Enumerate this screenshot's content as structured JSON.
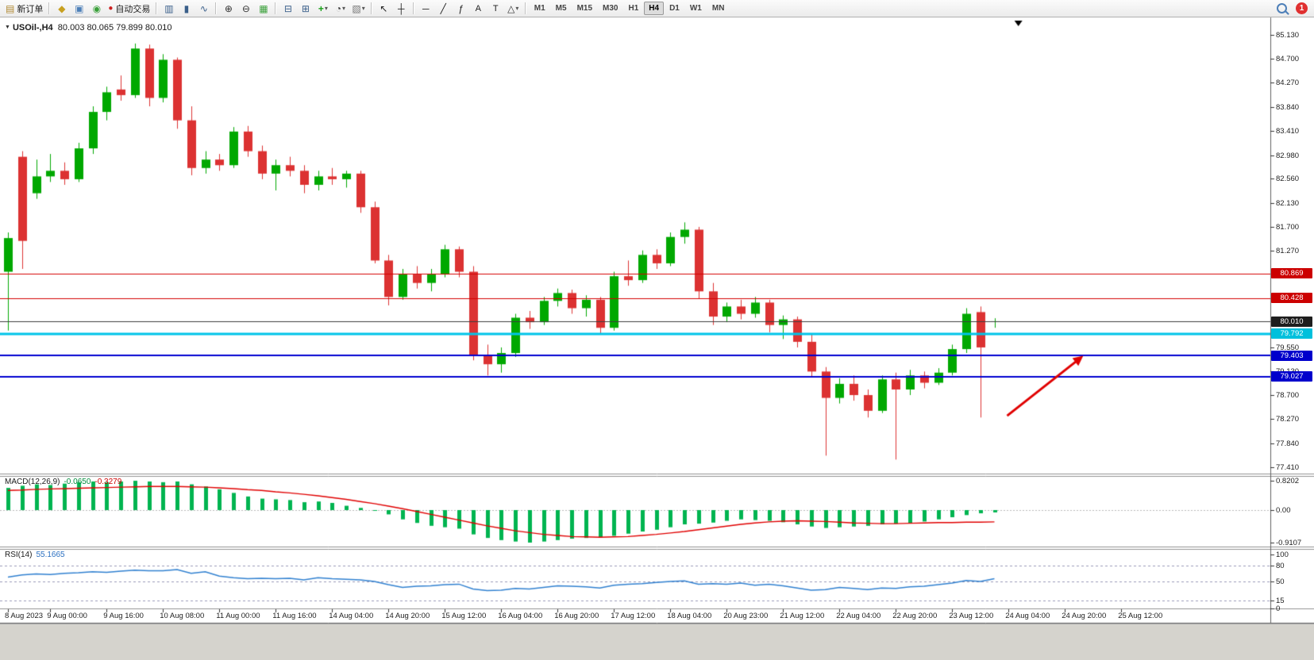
{
  "toolbar": {
    "new_order_label": "新订单",
    "autotrade_label": "自动交易",
    "timeframes": [
      "M1",
      "M5",
      "M15",
      "M30",
      "H1",
      "H4",
      "D1",
      "W1",
      "MN"
    ],
    "active_timeframe": "H4",
    "notification_count": "1",
    "icons": {
      "new_order": "▤",
      "mq": "◆",
      "profile": "▣",
      "community": "◉",
      "autotrade": "●",
      "bar_chart": "▥",
      "candle_chart": "▮",
      "line_chart": "∿",
      "zoom_in": "⊕",
      "zoom_out": "⊖",
      "tile_windows": "▦",
      "cascade": "⊟",
      "arrange": "⊞",
      "indicators": "+",
      "periods": "◔",
      "templates": "▧",
      "cursor": "↖",
      "crosshair": "┼",
      "hline": "─",
      "trendline": "╱",
      "fibonacci": "ƒ",
      "text": "A",
      "text_label": "T",
      "shapes": "△",
      "caret": "▾"
    }
  },
  "chart": {
    "expand_icon": "▼",
    "title": "USOil-,H4",
    "ohlc": "80.003 80.065 79.899 80.010"
  },
  "chart_data": {
    "type": "candlestick",
    "symbol": "USOil-",
    "timeframe": "H4",
    "current": {
      "open": "80.003",
      "high": "80.065",
      "low": "79.899",
      "close": "80.010"
    },
    "price_axis_ticks": [
      "85.130",
      "84.700",
      "84.270",
      "83.840",
      "83.410",
      "82.980",
      "82.560",
      "82.130",
      "81.700",
      "81.270",
      "79.550",
      "79.130",
      "78.700",
      "78.270",
      "77.840",
      "77.410"
    ],
    "price_lines": [
      {
        "text": "80.869",
        "price": 80.869,
        "bg": "#cc0000",
        "line": "#d40000",
        "width": 1
      },
      {
        "text": "80.428",
        "price": 80.428,
        "bg": "#cc0000",
        "line": "#d40000",
        "width": 1
      },
      {
        "text": "80.010",
        "price": 80.01,
        "bg": "#1e1e1e",
        "line": "#3c3c3c",
        "width": 1
      },
      {
        "text": "79.792",
        "price": 79.792,
        "bg": "#00c0dc",
        "line": "#00c4e8",
        "width": 3
      },
      {
        "text": "79.403",
        "price": 79.403,
        "bg": "#0000cc",
        "line": "#0000d0",
        "width": 2
      },
      {
        "text": "79.027",
        "price": 79.027,
        "bg": "#0000cc",
        "line": "#0000d0",
        "width": 2
      }
    ],
    "candles": [
      [
        80.9,
        81.6,
        79.85,
        81.5
      ],
      [
        82.95,
        83.05,
        80.95,
        81.45
      ],
      [
        82.3,
        82.9,
        82.2,
        82.6
      ],
      [
        82.6,
        83.0,
        82.5,
        82.7
      ],
      [
        82.7,
        82.85,
        82.45,
        82.55
      ],
      [
        82.55,
        83.2,
        82.5,
        83.1
      ],
      [
        83.1,
        83.85,
        83.0,
        83.75
      ],
      [
        83.75,
        84.2,
        83.6,
        84.1
      ],
      [
        84.15,
        84.4,
        83.95,
        84.05
      ],
      [
        84.05,
        84.97,
        84.0,
        84.88
      ],
      [
        84.88,
        84.95,
        83.85,
        84.0
      ],
      [
        84.0,
        84.78,
        83.92,
        84.68
      ],
      [
        84.68,
        84.72,
        83.45,
        83.6
      ],
      [
        83.6,
        83.85,
        82.62,
        82.75
      ],
      [
        82.75,
        83.05,
        82.65,
        82.9
      ],
      [
        82.9,
        83.0,
        82.7,
        82.8
      ],
      [
        82.8,
        83.48,
        82.75,
        83.4
      ],
      [
        83.4,
        83.5,
        82.95,
        83.05
      ],
      [
        83.05,
        83.15,
        82.55,
        82.65
      ],
      [
        82.65,
        82.9,
        82.35,
        82.8
      ],
      [
        82.8,
        82.95,
        82.6,
        82.7
      ],
      [
        82.7,
        82.8,
        82.3,
        82.45
      ],
      [
        82.45,
        82.7,
        82.35,
        82.6
      ],
      [
        82.6,
        82.75,
        82.45,
        82.55
      ],
      [
        82.55,
        82.7,
        82.4,
        82.65
      ],
      [
        82.65,
        82.7,
        81.95,
        82.05
      ],
      [
        82.05,
        82.15,
        81.05,
        81.1
      ],
      [
        81.1,
        81.2,
        80.3,
        80.45
      ],
      [
        80.45,
        80.95,
        80.4,
        80.85
      ],
      [
        80.85,
        81.0,
        80.6,
        80.7
      ],
      [
        80.7,
        80.95,
        80.55,
        80.85
      ],
      [
        80.85,
        81.38,
        80.8,
        81.3
      ],
      [
        81.3,
        81.35,
        80.8,
        80.9
      ],
      [
        80.9,
        81.0,
        79.32,
        79.4
      ],
      [
        79.4,
        79.6,
        79.05,
        79.25
      ],
      [
        79.25,
        79.55,
        79.1,
        79.45
      ],
      [
        79.45,
        80.15,
        79.38,
        80.08
      ],
      [
        80.08,
        80.2,
        79.88,
        80.0
      ],
      [
        80.0,
        80.45,
        79.95,
        80.38
      ],
      [
        80.38,
        80.6,
        80.28,
        80.52
      ],
      [
        80.52,
        80.58,
        80.15,
        80.25
      ],
      [
        80.25,
        80.48,
        80.1,
        80.4
      ],
      [
        80.4,
        80.45,
        79.78,
        79.9
      ],
      [
        79.9,
        80.9,
        79.85,
        80.82
      ],
      [
        80.82,
        81.1,
        80.65,
        80.75
      ],
      [
        80.75,
        81.28,
        80.7,
        81.2
      ],
      [
        81.2,
        81.3,
        80.95,
        81.05
      ],
      [
        81.05,
        81.6,
        81.0,
        81.52
      ],
      [
        81.52,
        81.78,
        81.4,
        81.65
      ],
      [
        81.65,
        81.7,
        80.42,
        80.55
      ],
      [
        80.55,
        80.7,
        79.95,
        80.1
      ],
      [
        80.1,
        80.35,
        80.0,
        80.28
      ],
      [
        80.28,
        80.4,
        80.05,
        80.15
      ],
      [
        80.15,
        80.45,
        80.08,
        80.35
      ],
      [
        80.35,
        80.4,
        79.82,
        79.95
      ],
      [
        79.95,
        80.12,
        79.7,
        80.05
      ],
      [
        80.05,
        80.1,
        79.55,
        79.65
      ],
      [
        79.65,
        79.8,
        79.02,
        79.12
      ],
      [
        79.12,
        79.2,
        77.62,
        78.65
      ],
      [
        78.65,
        79.0,
        78.55,
        78.9
      ],
      [
        78.9,
        79.05,
        78.6,
        78.7
      ],
      [
        78.7,
        78.8,
        78.3,
        78.42
      ],
      [
        78.42,
        79.05,
        78.38,
        78.98
      ],
      [
        78.98,
        79.1,
        77.55,
        78.8
      ],
      [
        78.8,
        79.15,
        78.7,
        79.05
      ],
      [
        79.05,
        79.12,
        78.82,
        78.92
      ],
      [
        78.92,
        79.18,
        78.88,
        79.1
      ],
      [
        79.1,
        79.6,
        79.05,
        79.52
      ],
      [
        79.52,
        80.25,
        79.45,
        80.15
      ],
      [
        80.18,
        80.28,
        78.3,
        79.55
      ],
      [
        80.0,
        80.07,
        79.9,
        80.01
      ]
    ],
    "time_labels": [
      {
        "idx": 0,
        "text": "8 Aug 2023"
      },
      {
        "idx": 3,
        "text": "9 Aug 00:00"
      },
      {
        "idx": 7,
        "text": "9 Aug 16:00"
      },
      {
        "idx": 11,
        "text": "10 Aug 08:00"
      },
      {
        "idx": 15,
        "text": "11 Aug 00:00"
      },
      {
        "idx": 19,
        "text": "11 Aug 16:00"
      },
      {
        "idx": 23,
        "text": "14 Aug 04:00"
      },
      {
        "idx": 27,
        "text": "14 Aug 20:00"
      },
      {
        "idx": 31,
        "text": "15 Aug 12:00"
      },
      {
        "idx": 35,
        "text": "16 Aug 04:00"
      },
      {
        "idx": 39,
        "text": "16 Aug 20:00"
      },
      {
        "idx": 43,
        "text": "17 Aug 12:00"
      },
      {
        "idx": 47,
        "text": "18 Aug 04:00"
      },
      {
        "idx": 51,
        "text": "20 Aug 23:00"
      },
      {
        "idx": 55,
        "text": "21 Aug 12:00"
      },
      {
        "idx": 59,
        "text": "22 Aug 04:00"
      },
      {
        "idx": 63,
        "text": "22 Aug 20:00"
      },
      {
        "idx": 67,
        "text": "23 Aug 12:00"
      },
      {
        "idx": 71,
        "text": "24 Aug 04:00"
      },
      {
        "idx": 75,
        "text": "24 Aug 20:00"
      },
      {
        "idx": 79,
        "text": "25 Aug 12:00"
      }
    ],
    "macd": {
      "label": "MACD(12,26,9)",
      "value_main": "-0.0650",
      "value_signal": "-0.3279",
      "scale": [
        "0.8202",
        "0.00",
        "-0.9107"
      ],
      "histogram": [
        0.62,
        0.68,
        0.72,
        0.7,
        0.74,
        0.78,
        0.8,
        0.78,
        0.8,
        0.82,
        0.8,
        0.78,
        0.8,
        0.72,
        0.66,
        0.58,
        0.48,
        0.38,
        0.32,
        0.3,
        0.28,
        0.22,
        0.24,
        0.2,
        0.12,
        0.06,
        -0.02,
        -0.12,
        -0.26,
        -0.36,
        -0.44,
        -0.48,
        -0.52,
        -0.68,
        -0.78,
        -0.84,
        -0.88,
        -0.91,
        -0.88,
        -0.84,
        -0.8,
        -0.78,
        -0.76,
        -0.72,
        -0.66,
        -0.6,
        -0.55,
        -0.48,
        -0.4,
        -0.38,
        -0.35,
        -0.3,
        -0.26,
        -0.28,
        -0.3,
        -0.34,
        -0.4,
        -0.46,
        -0.5,
        -0.48,
        -0.46,
        -0.44,
        -0.4,
        -0.38,
        -0.36,
        -0.32,
        -0.26,
        -0.2,
        -0.14,
        -0.09,
        -0.065
      ],
      "signal": [
        0.55,
        0.56,
        0.58,
        0.59,
        0.6,
        0.61,
        0.62,
        0.63,
        0.64,
        0.65,
        0.66,
        0.66,
        0.66,
        0.65,
        0.64,
        0.62,
        0.6,
        0.57,
        0.55,
        0.51,
        0.48,
        0.44,
        0.4,
        0.35,
        0.3,
        0.24,
        0.18,
        0.11,
        0.04,
        -0.04,
        -0.12,
        -0.2,
        -0.28,
        -0.36,
        -0.44,
        -0.51,
        -0.58,
        -0.63,
        -0.68,
        -0.71,
        -0.74,
        -0.75,
        -0.76,
        -0.75,
        -0.74,
        -0.71,
        -0.68,
        -0.64,
        -0.6,
        -0.55,
        -0.5,
        -0.45,
        -0.4,
        -0.36,
        -0.33,
        -0.31,
        -0.3,
        -0.31,
        -0.32,
        -0.34,
        -0.36,
        -0.37,
        -0.38,
        -0.38,
        -0.37,
        -0.36,
        -0.35,
        -0.35,
        -0.34,
        -0.34,
        -0.33
      ]
    },
    "rsi": {
      "label": "RSI(14)",
      "value": "55.1665",
      "scale": [
        "100",
        "80",
        "50",
        "15",
        "0"
      ],
      "levels": [
        80,
        50,
        15
      ],
      "values": [
        58,
        62,
        64,
        63,
        65,
        66,
        68,
        67,
        69,
        71,
        70,
        70,
        72,
        65,
        68,
        60,
        57,
        55,
        56,
        55,
        56,
        53,
        57,
        55,
        54,
        53,
        50,
        44,
        39,
        41,
        42,
        44,
        45,
        36,
        33,
        34,
        37,
        36,
        39,
        42,
        41,
        40,
        38,
        43,
        45,
        46,
        48,
        50,
        51,
        45,
        46,
        45,
        47,
        43,
        45,
        42,
        38,
        34,
        35,
        39,
        37,
        35,
        38,
        37,
        40,
        41,
        44,
        47,
        52,
        50,
        55.17
      ],
      "line_color": "#3080d0"
    },
    "annotations": [
      {
        "type": "arrow",
        "start_idx": 70.9,
        "start_price": 78.33,
        "end_idx": 76.3,
        "end_price": 79.4,
        "color": "#e00000"
      }
    ],
    "shift_marker_idx": 71.7,
    "colors": {
      "bull": "#00a800",
      "bear": "#dc3232",
      "macd_hist": "#00b450",
      "macd_signal": "#e00000",
      "rsi_line": "#3080d0",
      "level_dash": "#9898b8",
      "axis_text": "#1e1e1e"
    }
  }
}
